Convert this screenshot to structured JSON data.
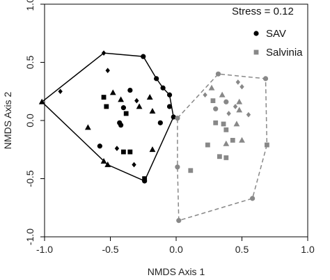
{
  "chart_data": {
    "type": "scatter",
    "title": "",
    "xlabel": "NMDS Axis 1",
    "ylabel": "NMDS Axis 2",
    "xlim": [
      -1.0,
      1.0
    ],
    "ylim": [
      -1.0,
      1.0
    ],
    "xticks": [
      "-1.0",
      "-0.5",
      "0.0",
      "0.5",
      "1.0"
    ],
    "yticks": [
      "-1.0",
      "-0.5",
      "0.0",
      "0.5",
      "1.0"
    ],
    "xtick_values": [
      -1.0,
      -0.5,
      0.0,
      0.5,
      1.0
    ],
    "ytick_values": [
      -1.0,
      -0.5,
      0.0,
      0.5,
      1.0
    ],
    "grid": false,
    "annotation": "Stress = 0.12",
    "legend_position": "top-right",
    "series": [
      {
        "name": "SAV",
        "color": "#000000",
        "hull_style": "solid",
        "points": [
          {
            "x": -0.55,
            "y": 0.58,
            "shape": "diamond"
          },
          {
            "x": -0.25,
            "y": 0.55,
            "shape": "circle"
          },
          {
            "x": -0.88,
            "y": 0.25,
            "shape": "diamond"
          },
          {
            "x": -1.02,
            "y": 0.16,
            "shape": "triangle"
          },
          {
            "x": -0.52,
            "y": 0.43,
            "shape": "diamond"
          },
          {
            "x": -0.15,
            "y": 0.36,
            "shape": "circle"
          },
          {
            "x": -0.1,
            "y": 0.28,
            "shape": "circle"
          },
          {
            "x": -0.35,
            "y": 0.26,
            "shape": "circle"
          },
          {
            "x": -0.05,
            "y": 0.22,
            "shape": "circle"
          },
          {
            "x": -0.48,
            "y": 0.24,
            "shape": "triangle"
          },
          {
            "x": -0.55,
            "y": 0.2,
            "shape": "square"
          },
          {
            "x": -0.42,
            "y": 0.18,
            "shape": "triangle"
          },
          {
            "x": -0.2,
            "y": 0.2,
            "shape": "triangle"
          },
          {
            "x": -0.3,
            "y": 0.17,
            "shape": "diamond"
          },
          {
            "x": -0.4,
            "y": 0.11,
            "shape": "circle"
          },
          {
            "x": -0.28,
            "y": 0.12,
            "shape": "triangle"
          },
          {
            "x": -0.05,
            "y": 0.12,
            "shape": "circle"
          },
          {
            "x": -0.53,
            "y": 0.12,
            "shape": "square"
          },
          {
            "x": -0.18,
            "y": 0.08,
            "shape": "triangle"
          },
          {
            "x": -0.38,
            "y": 0.06,
            "shape": "square"
          },
          {
            "x": -0.43,
            "y": -0.02,
            "shape": "circle"
          },
          {
            "x": -0.12,
            "y": -0.02,
            "shape": "circle"
          },
          {
            "x": -0.67,
            "y": -0.06,
            "shape": "triangle"
          },
          {
            "x": -0.42,
            "y": -0.04,
            "shape": "circle"
          },
          {
            "x": -0.58,
            "y": -0.22,
            "shape": "circle"
          },
          {
            "x": -0.45,
            "y": -0.24,
            "shape": "diamond"
          },
          {
            "x": -0.4,
            "y": -0.27,
            "shape": "square"
          },
          {
            "x": -0.35,
            "y": -0.27,
            "shape": "square"
          },
          {
            "x": -0.18,
            "y": -0.25,
            "shape": "triangle"
          },
          {
            "x": -0.55,
            "y": -0.35,
            "shape": "triangle"
          },
          {
            "x": -0.52,
            "y": -0.38,
            "shape": "triangle"
          },
          {
            "x": -0.32,
            "y": -0.38,
            "shape": "diamond"
          },
          {
            "x": -0.24,
            "y": -0.5,
            "shape": "square"
          },
          {
            "x": -0.24,
            "y": -0.52,
            "shape": "circle"
          },
          {
            "x": -0.02,
            "y": 0.03,
            "shape": "circle"
          }
        ],
        "hull": [
          [
            -1.02,
            0.16
          ],
          [
            -0.55,
            0.58
          ],
          [
            -0.25,
            0.55
          ],
          [
            -0.15,
            0.36
          ],
          [
            -0.1,
            0.28
          ],
          [
            -0.05,
            0.22
          ],
          [
            -0.02,
            0.03
          ],
          [
            -0.24,
            -0.52
          ],
          [
            -0.52,
            -0.38
          ],
          [
            -1.02,
            0.16
          ]
        ]
      },
      {
        "name": "Salvinia",
        "color": "#888888",
        "hull_style": "dashed",
        "points": [
          {
            "x": 0.32,
            "y": 0.4,
            "shape": "circle"
          },
          {
            "x": 0.68,
            "y": 0.36,
            "shape": "circle"
          },
          {
            "x": 0.47,
            "y": 0.33,
            "shape": "diamond"
          },
          {
            "x": 0.27,
            "y": 0.28,
            "shape": "triangle"
          },
          {
            "x": 0.5,
            "y": 0.29,
            "shape": "diamond"
          },
          {
            "x": 0.22,
            "y": 0.22,
            "shape": "diamond"
          },
          {
            "x": 0.35,
            "y": 0.22,
            "shape": "triangle"
          },
          {
            "x": 0.28,
            "y": 0.17,
            "shape": "square"
          },
          {
            "x": 0.38,
            "y": 0.16,
            "shape": "circle"
          },
          {
            "x": 0.48,
            "y": 0.16,
            "shape": "triangle"
          },
          {
            "x": 0.45,
            "y": 0.12,
            "shape": "diamond"
          },
          {
            "x": 0.3,
            "y": 0.1,
            "shape": "circle"
          },
          {
            "x": 0.48,
            "y": 0.09,
            "shape": "triangle"
          },
          {
            "x": 0.4,
            "y": 0.06,
            "shape": "diamond"
          },
          {
            "x": 0.55,
            "y": 0.05,
            "shape": "diamond"
          },
          {
            "x": 0.3,
            "y": -0.02,
            "shape": "square"
          },
          {
            "x": 0.36,
            "y": -0.03,
            "shape": "square"
          },
          {
            "x": 0.46,
            "y": -0.03,
            "shape": "triangle"
          },
          {
            "x": 0.38,
            "y": -0.08,
            "shape": "square"
          },
          {
            "x": 0.01,
            "y": 0.02,
            "shape": "circle"
          },
          {
            "x": 0.43,
            "y": -0.17,
            "shape": "square"
          },
          {
            "x": 0.24,
            "y": -0.21,
            "shape": "square"
          },
          {
            "x": 0.5,
            "y": -0.17,
            "shape": "triangle"
          },
          {
            "x": 0.38,
            "y": -0.2,
            "shape": "triangle"
          },
          {
            "x": 0.33,
            "y": -0.31,
            "shape": "square"
          },
          {
            "x": 0.38,
            "y": -0.32,
            "shape": "square"
          },
          {
            "x": 0.01,
            "y": -0.4,
            "shape": "circle"
          },
          {
            "x": 0.11,
            "y": -0.43,
            "shape": "square"
          },
          {
            "x": 0.69,
            "y": -0.21,
            "shape": "square"
          },
          {
            "x": 0.58,
            "y": -0.67,
            "shape": "circle"
          },
          {
            "x": 0.02,
            "y": -0.86,
            "shape": "circle"
          }
        ],
        "hull": [
          [
            0.01,
            0.02
          ],
          [
            0.32,
            0.4
          ],
          [
            0.68,
            0.36
          ],
          [
            0.69,
            -0.21
          ],
          [
            0.58,
            -0.67
          ],
          [
            0.02,
            -0.86
          ],
          [
            0.01,
            -0.4
          ],
          [
            0.01,
            0.02
          ]
        ]
      }
    ]
  }
}
